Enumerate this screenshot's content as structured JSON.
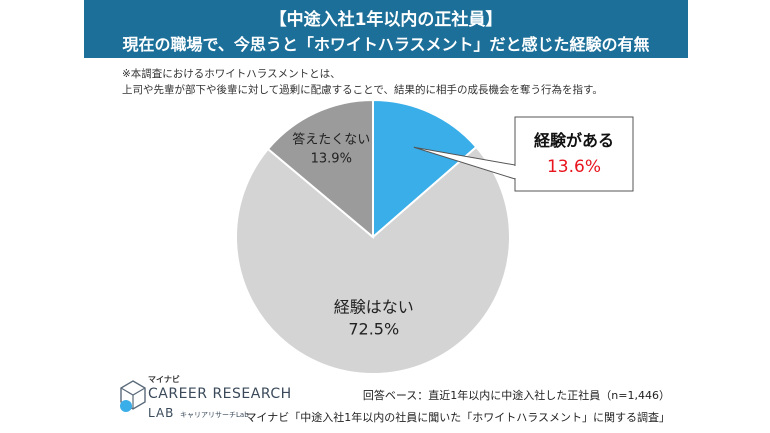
{
  "header": {
    "title": "【中途入社1年以内の正社員】",
    "subtitle": "現在の職場で、今思うと「ホワイトハラスメント」だと感じた経験の有無"
  },
  "note": {
    "line1": "※本調査におけるホワイトハラスメントとは、",
    "line2": "上司や先輩が部下や後輩に対して過剰に配慮することで、結果的に相手の成長機会を奪う行為を指す。"
  },
  "chart_data": {
    "type": "pie",
    "slices": [
      {
        "label": "経験がある",
        "value": 13.6,
        "value_label": "13.6%",
        "color": "#3aaee8"
      },
      {
        "label": "経験はない",
        "value": 72.5,
        "value_label": "72.5%",
        "color": "#d4d4d4"
      },
      {
        "label": "答えたくない",
        "value": 13.9,
        "value_label": "13.9%",
        "color": "#9b9b9b"
      }
    ],
    "highlight_value_color": "#e8141e"
  },
  "footer": {
    "base": "回答ベース：直近1年以内に中途入社した正社員（n=1,446）",
    "source": "マイナビ「中途入社1年以内の社員に聞いた「ホワイトハラスメント」に関する調査」"
  },
  "logo": {
    "sub": "マイナビ",
    "main": "CAREER RESEARCH",
    "lab": "LAB",
    "jp": "キャリアリサーチLab"
  }
}
